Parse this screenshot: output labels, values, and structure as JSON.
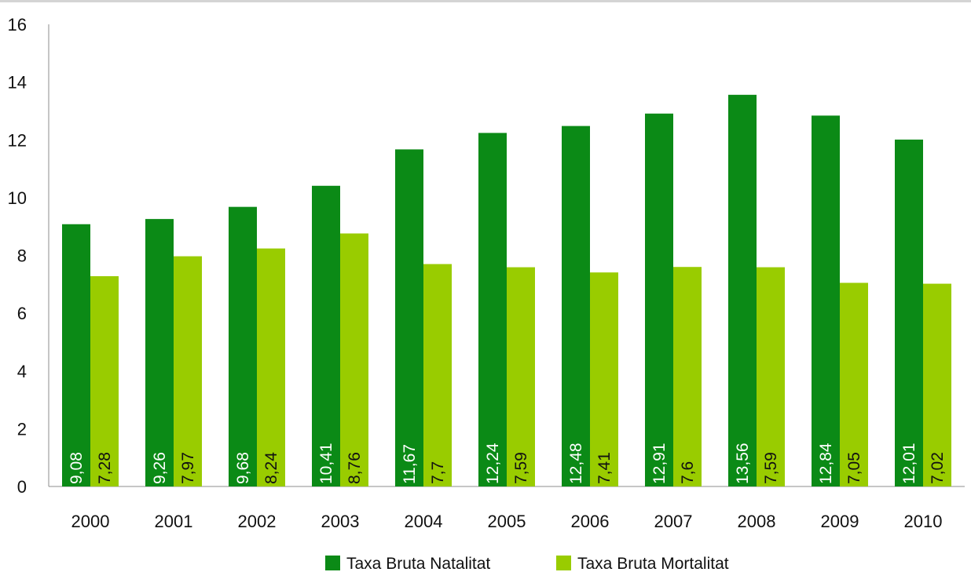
{
  "chart_data": {
    "type": "bar",
    "categories": [
      "2000",
      "2001",
      "2002",
      "2003",
      "2004",
      "2005",
      "2006",
      "2007",
      "2008",
      "2009",
      "2010"
    ],
    "series": [
      {
        "name": "Taxa Bruta Natalitat",
        "color": "#0b8a16",
        "label_color": "#ffffff",
        "values": [
          9.08,
          9.26,
          9.68,
          10.41,
          11.67,
          12.24,
          12.48,
          12.91,
          13.56,
          12.84,
          12.01
        ],
        "labels": [
          "9,08",
          "9,26",
          "9,68",
          "10,41",
          "11,67",
          "12,24",
          "12,48",
          "12,91",
          "13,56",
          "12,84",
          "12,01"
        ]
      },
      {
        "name": "Taxa Bruta Mortalitat",
        "color": "#99cc00",
        "label_color": "#111111",
        "values": [
          7.28,
          7.97,
          8.24,
          8.76,
          7.7,
          7.59,
          7.41,
          7.6,
          7.59,
          7.05,
          7.02
        ],
        "labels": [
          "7,28",
          "7,97",
          "8,24",
          "8,76",
          "7,7",
          "7,59",
          "7,41",
          "7,6",
          "7,59",
          "7,05",
          "7,02"
        ]
      }
    ],
    "y_ticks": [
      "0",
      "2",
      "4",
      "6",
      "8",
      "10",
      "12",
      "14",
      "16"
    ],
    "ylim": [
      0,
      16
    ],
    "grid": false,
    "legend_position": "bottom",
    "data_labels": "inside-bottom-vertical"
  }
}
